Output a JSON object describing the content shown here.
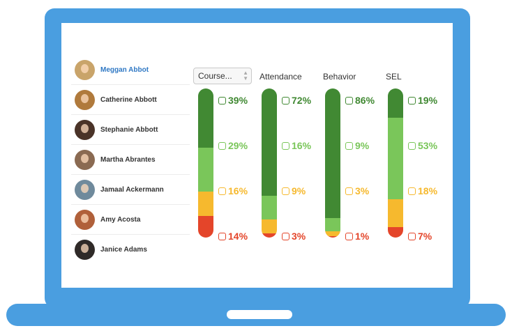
{
  "colors": {
    "dark_green": "#418933",
    "light_green": "#7ac65a",
    "yellow": "#f6b92e",
    "red": "#e4452a",
    "selected_name": "#2f78c4",
    "frame": "#4a9ee0"
  },
  "students": [
    {
      "name": "Meggan Abbot",
      "selected": true,
      "avatar_color": "#c9a46a"
    },
    {
      "name": "Catherine Abbott",
      "selected": false,
      "avatar_color": "#b07a3c"
    },
    {
      "name": "Stephanie Abbott",
      "selected": false,
      "avatar_color": "#4a3328"
    },
    {
      "name": "Martha Abrantes",
      "selected": false,
      "avatar_color": "#8a6a52"
    },
    {
      "name": "Jamaal Ackermann",
      "selected": false,
      "avatar_color": "#6f8a9c"
    },
    {
      "name": "Amy Acosta",
      "selected": false,
      "avatar_color": "#b0603a"
    },
    {
      "name": "Janice Adams",
      "selected": false,
      "avatar_color": "#2f2a28"
    }
  ],
  "header": {
    "course_select": "Course...",
    "columns": [
      "Attendance",
      "Behavior",
      "SEL"
    ]
  },
  "chart_data": {
    "type": "bar",
    "stacked": true,
    "orientation": "vertical",
    "categories": [
      "Course",
      "Attendance",
      "Behavior",
      "SEL"
    ],
    "series": [
      {
        "name": "dark green",
        "values": [
          39,
          72,
          86,
          19
        ]
      },
      {
        "name": "light green",
        "values": [
          29,
          16,
          9,
          53
        ]
      },
      {
        "name": "yellow",
        "values": [
          16,
          9,
          3,
          18
        ]
      },
      {
        "name": "red",
        "values": [
          14,
          3,
          1,
          7
        ]
      }
    ],
    "labels": [
      [
        "39%",
        "29%",
        "16%",
        "14%"
      ],
      [
        "72%",
        "16%",
        "9%",
        "3%"
      ],
      [
        "86%",
        "9%",
        "3%",
        "1%"
      ],
      [
        "19%",
        "53%",
        "18%",
        "7%"
      ]
    ]
  }
}
